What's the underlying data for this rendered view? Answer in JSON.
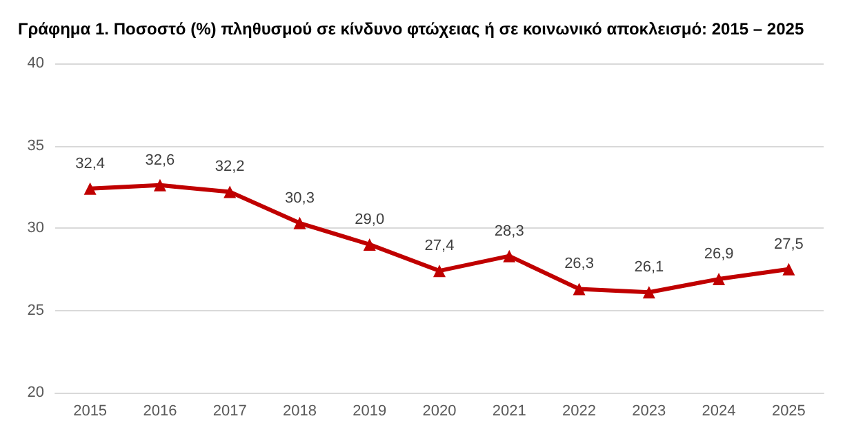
{
  "chart_data": {
    "type": "line",
    "title": "Γράφημα 1. Ποσοστό (%) πληθυσμού σε κίνδυνο φτώχειας ή σε κοινωνικό αποκλεισμό: 2015 – 2025",
    "categories": [
      "2015",
      "2016",
      "2017",
      "2018",
      "2019",
      "2020",
      "2021",
      "2022",
      "2023",
      "2024",
      "2025"
    ],
    "series": [
      {
        "color": "#c00000",
        "values": [
          32.4,
          32.6,
          32.2,
          30.3,
          29.0,
          27.4,
          28.3,
          26.3,
          26.1,
          26.9,
          27.5
        ],
        "value_labels": [
          "32,4",
          "32,6",
          "32,2",
          "30,3",
          "29,0",
          "27,4",
          "28,3",
          "26,3",
          "26,1",
          "26,9",
          "27,5"
        ]
      }
    ],
    "ylim": [
      20,
      40
    ],
    "yticks": [
      20,
      25,
      30,
      35,
      40
    ],
    "grid": "y",
    "marker": "triangle",
    "line_style": "solid"
  }
}
